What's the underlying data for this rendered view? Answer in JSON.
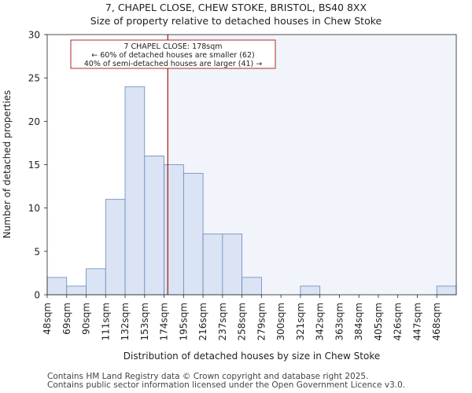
{
  "chart_data": {
    "type": "bar",
    "title": "7, CHAPEL CLOSE, CHEW STOKE, BRISTOL, BS40 8XX",
    "subtitle": "Size of property relative to detached houses in Chew Stoke",
    "xlabel": "Distribution of detached houses by size in Chew Stoke",
    "ylabel": "Number of detached properties",
    "categories": [
      "48sqm",
      "69sqm",
      "90sqm",
      "111sqm",
      "132sqm",
      "153sqm",
      "174sqm",
      "195sqm",
      "216sqm",
      "237sqm",
      "258sqm",
      "279sqm",
      "300sqm",
      "321sqm",
      "342sqm",
      "363sqm",
      "384sqm",
      "405sqm",
      "426sqm",
      "447sqm",
      "468sqm"
    ],
    "values": [
      2,
      1,
      3,
      11,
      24,
      16,
      15,
      14,
      7,
      7,
      2,
      0,
      0,
      1,
      0,
      0,
      0,
      0,
      0,
      0,
      1
    ],
    "ylim": [
      0,
      30
    ],
    "yticks": [
      0,
      5,
      10,
      15,
      20,
      25,
      30
    ],
    "marker_value": 178,
    "marker_label": "7 CHAPEL CLOSE: 178sqm",
    "annotation_lines": [
      "7 CHAPEL CLOSE: 178sqm",
      "← 60% of detached houses are smaller (62)",
      "40% of semi-detached houses are larger (41) →"
    ],
    "colors": {
      "bar_fill": "#dae4f4",
      "bar_stroke": "#6a86b8",
      "marker": "#aa1111",
      "highlight_bg": "#f1f4fb"
    }
  },
  "footer": {
    "line1": "Contains HM Land Registry data © Crown copyright and database right 2025.",
    "line2": "Contains public sector information licensed under the Open Government Licence v3.0."
  }
}
